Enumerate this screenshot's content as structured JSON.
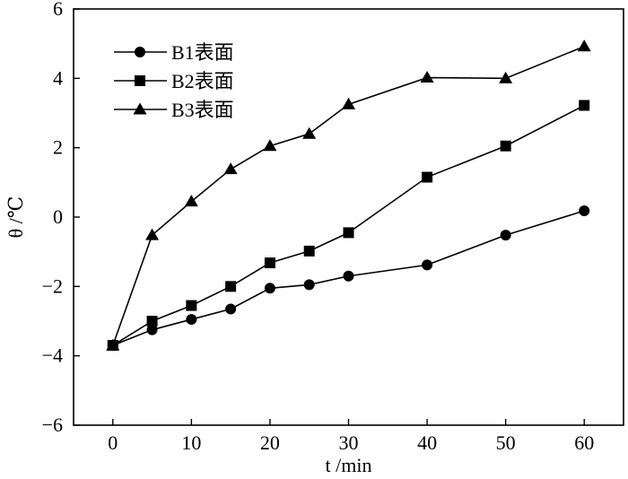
{
  "chart_data": {
    "type": "line",
    "x": [
      0,
      5,
      10,
      15,
      20,
      25,
      30,
      40,
      50,
      60
    ],
    "xlabel": "t /min",
    "ylabel": "θ /℃",
    "xlim": [
      -5,
      65
    ],
    "ylim": [
      -6,
      6
    ],
    "x_ticks": [
      0,
      10,
      20,
      30,
      40,
      50,
      60
    ],
    "y_ticks": [
      -6,
      -4,
      -2,
      0,
      2,
      4,
      6
    ],
    "grid": false,
    "legend_position": "top-left",
    "series": [
      {
        "name": "B1表面",
        "marker": "circle",
        "values": [
          -3.7,
          -3.25,
          -2.95,
          -2.65,
          -2.05,
          -1.95,
          -1.7,
          -1.38,
          -0.52,
          0.18
        ]
      },
      {
        "name": "B2表面",
        "marker": "square",
        "values": [
          -3.7,
          -3.0,
          -2.55,
          -2.0,
          -1.32,
          -0.98,
          -0.45,
          1.15,
          2.05,
          3.22
        ]
      },
      {
        "name": "B3表面",
        "marker": "triangle",
        "values": [
          -3.7,
          -0.52,
          0.45,
          1.38,
          2.05,
          2.4,
          3.25,
          4.02,
          4.0,
          4.92
        ]
      }
    ]
  }
}
